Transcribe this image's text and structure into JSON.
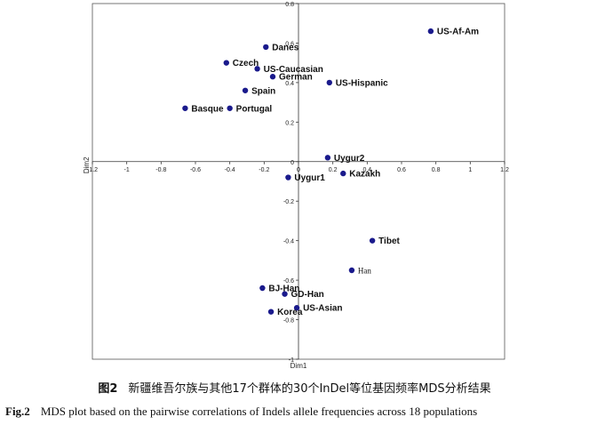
{
  "chart_data": {
    "type": "scatter",
    "xlabel": "Dim1",
    "ylabel": "Dim2",
    "xlim": [
      -1.2,
      1.2
    ],
    "ylim": [
      -1,
      0.8
    ],
    "xticks": [
      -1.2,
      -1,
      -0.8,
      -0.6,
      -0.4,
      -0.2,
      0,
      0.2,
      0.4,
      0.6,
      0.8,
      1,
      1.2
    ],
    "xtick_labels": [
      "-1.2",
      "-1",
      "-0.8",
      "-0.6",
      "-0.4",
      "-0.2",
      "0",
      "0.2",
      "0.4",
      "0.6",
      "0.8",
      "1",
      "1.2"
    ],
    "yticks": [
      -1,
      -0.8,
      -0.6,
      -0.4,
      -0.2,
      0,
      0.2,
      0.4,
      0.6,
      0.8
    ],
    "ytick_labels": [
      "-1",
      "-0.8",
      "-0.6",
      "-0.4",
      "-0.2",
      "0",
      "0.2",
      "0.4",
      "0.6",
      "0.8"
    ],
    "grid": false,
    "marker_color": "#1a1a8c",
    "points": [
      {
        "label": "US-Af-Am",
        "x": 0.77,
        "y": 0.66
      },
      {
        "label": "Danes",
        "x": -0.19,
        "y": 0.58
      },
      {
        "label": "Czech",
        "x": -0.42,
        "y": 0.5
      },
      {
        "label": "US-Caucasian",
        "x": -0.24,
        "y": 0.47
      },
      {
        "label": "German",
        "x": -0.15,
        "y": 0.43
      },
      {
        "label": "US-Hispanic",
        "x": 0.18,
        "y": 0.4
      },
      {
        "label": "Spain",
        "x": -0.31,
        "y": 0.36
      },
      {
        "label": "Basque",
        "x": -0.66,
        "y": 0.27
      },
      {
        "label": "Portugal",
        "x": -0.4,
        "y": 0.27
      },
      {
        "label": "Uygur2",
        "x": 0.17,
        "y": 0.02
      },
      {
        "label": "Kazakh",
        "x": 0.26,
        "y": -0.06
      },
      {
        "label": "Uygur1",
        "x": -0.06,
        "y": -0.08
      },
      {
        "label": "Tibet",
        "x": 0.43,
        "y": -0.4
      },
      {
        "label": "Han",
        "x": 0.31,
        "y": -0.55
      },
      {
        "label": "BJ-Han",
        "x": -0.21,
        "y": -0.64
      },
      {
        "label": "GD-Han",
        "x": -0.08,
        "y": -0.67
      },
      {
        "label": "US-Asian",
        "x": -0.01,
        "y": -0.74
      },
      {
        "label": "Korea",
        "x": -0.16,
        "y": -0.76
      }
    ]
  },
  "caption_zh": {
    "label": "图2",
    "text": "新疆维吾尔族与其他17个群体的30个InDel等位基因频率MDS分析结果"
  },
  "caption_en": {
    "label": "Fig.2",
    "text": "MDS plot based on the pairwise correlations of Indels allele frequencies across 18 populations"
  }
}
